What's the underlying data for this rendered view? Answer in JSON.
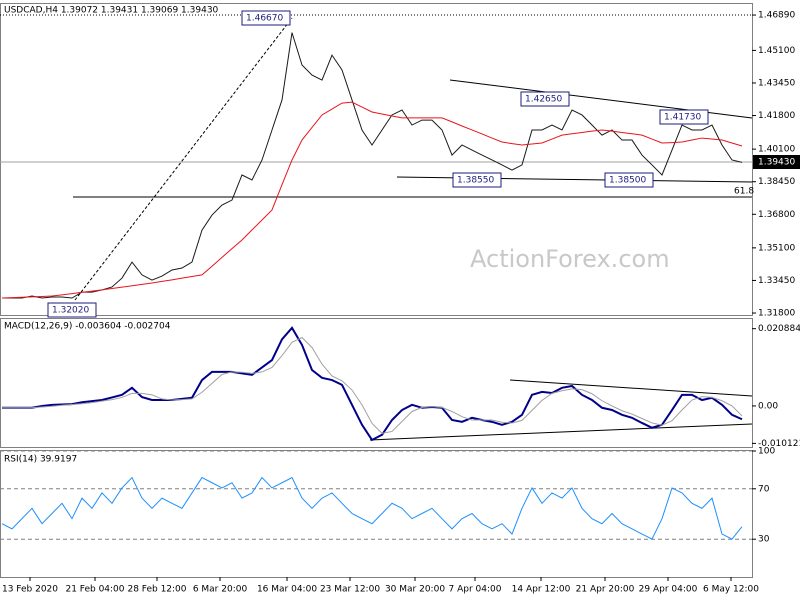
{
  "chart_data": [
    {
      "type": "line",
      "title": "USDCAD,H4  1.39072 1.39431 1.39069 1.39430",
      "watermark": "ActionForex.com",
      "last_price_label": "1.39430",
      "annotations": [
        "1.46670",
        "1.32020",
        "1.42650",
        "1.41730",
        "1.38550",
        "1.38500",
        "61.8"
      ],
      "ylim": [
        1.317,
        1.475
      ],
      "yticks": [
        {
          "value": 1.4689,
          "label": "1.46890"
        },
        {
          "value": 1.451,
          "label": "1.45100"
        },
        {
          "value": 1.4345,
          "label": "1.43450"
        },
        {
          "value": 1.418,
          "label": "1.41800"
        },
        {
          "value": 1.401,
          "label": "1.40100"
        },
        {
          "value": 1.3845,
          "label": "1.38450"
        },
        {
          "value": 1.368,
          "label": "1.36800"
        },
        {
          "value": 1.351,
          "label": "1.35100"
        },
        {
          "value": 1.3345,
          "label": "1.33450"
        },
        {
          "value": 1.318,
          "label": "1.31800"
        }
      ],
      "series": [
        {
          "color": "#1a1a1a",
          "values": [
            1.3256,
            1.3256,
            1.3256,
            1.3266,
            1.3256,
            1.3261,
            1.3261,
            1.3256,
            1.3286,
            1.3286,
            1.3297,
            1.3312,
            1.3357,
            1.3438,
            1.3373,
            1.3347,
            1.3367,
            1.3398,
            1.3408,
            1.3438,
            1.36,
            1.3676,
            1.3727,
            1.3752,
            1.3879,
            1.3854,
            1.3955,
            1.4107,
            1.4259,
            1.46,
            1.4436,
            1.4385,
            1.436,
            1.4486,
            1.4411,
            1.4259,
            1.4107,
            1.4031,
            1.4107,
            1.4183,
            1.4208,
            1.4132,
            1.4157,
            1.4157,
            1.4107,
            1.398,
            1.4031,
            1.4005,
            1.398,
            1.3955,
            1.393,
            1.3904,
            1.393,
            1.4107,
            1.4107,
            1.4132,
            1.4107,
            1.4208,
            1.4183,
            1.4132,
            1.4081,
            1.4107,
            1.4056,
            1.4056,
            1.398,
            1.393,
            1.3879,
            1.4005,
            1.4132,
            1.4107,
            1.4107,
            1.4132,
            1.4031,
            1.3955,
            1.3943
          ]
        },
        {
          "color": "#e8141e",
          "values": [
            1.3256,
            1.3258,
            1.326,
            1.3262,
            1.3264,
            1.3266,
            1.3272,
            1.3278,
            1.3285,
            1.3291,
            1.3297,
            1.3304,
            1.3311,
            1.3318,
            1.3325,
            1.3332,
            1.334,
            1.3348,
            1.3357,
            1.3365,
            1.3373,
            1.3417,
            1.3462,
            1.3506,
            1.355,
            1.3601,
            1.3651,
            1.3702,
            1.383,
            1.3955,
            1.4056,
            1.412,
            1.4183,
            1.4213,
            1.4243,
            1.4248,
            1.4223,
            1.4198,
            1.4188,
            1.4178,
            1.4168,
            1.4168,
            1.4168,
            1.4168,
            1.4168,
            1.4148,
            1.4127,
            1.4107,
            1.4087,
            1.4066,
            1.4046,
            1.4038,
            1.4031,
            1.4036,
            1.4041,
            1.4061,
            1.4081,
            1.4088,
            1.4094,
            1.4101,
            1.4107,
            1.4101,
            1.4094,
            1.4088,
            1.4081,
            1.4061,
            1.4041,
            1.4043,
            1.4046,
            1.4056,
            1.4066,
            1.4061,
            1.4056,
            1.4041,
            1.4026
          ]
        }
      ]
    },
    {
      "type": "line",
      "title": "MACD(12,26,9) -0.003604 -0.002704",
      "ylim": [
        -0.0111,
        0.0235
      ],
      "yticks": [
        0.020884,
        {
          "value": 0,
          "label": "0.00"
        },
        -0.010121
      ],
      "series": [
        {
          "color": "#00008b",
          "values": [
            -0.0005,
            -0.0005,
            -0.0005,
            -0.0005,
            0.0,
            0.0003,
            0.0004,
            0.0005,
            0.001,
            0.0013,
            0.0016,
            0.0023,
            0.003,
            0.0049,
            0.0024,
            0.0016,
            0.0016,
            0.0016,
            0.0019,
            0.0022,
            0.007,
            0.0092,
            0.0092,
            0.0092,
            0.0088,
            0.0084,
            0.0104,
            0.0124,
            0.018,
            0.0211,
            0.0165,
            0.0097,
            0.0076,
            0.007,
            0.0057,
            0.0003,
            -0.0051,
            -0.0092,
            -0.0078,
            -0.0038,
            -0.0011,
            0.0003,
            -0.0005,
            -0.0003,
            -0.0005,
            -0.0038,
            -0.0043,
            -0.0032,
            -0.0038,
            -0.0043,
            -0.0051,
            -0.0043,
            -0.0024,
            0.003,
            0.0038,
            0.0035,
            0.0049,
            0.0054,
            0.003,
            0.0016,
            -0.0005,
            -0.0011,
            -0.0024,
            -0.0032,
            -0.0046,
            -0.0059,
            -0.0051,
            -0.0011,
            0.003,
            0.003,
            0.0016,
            0.0022,
            0.0003,
            -0.0024,
            -0.0036
          ]
        },
        {
          "color": "#a0a0a0",
          "values": [
            -0.0005,
            -0.0005,
            -0.0005,
            -0.0005,
            -0.0003,
            -0.0001,
            0.0002,
            0.0004,
            0.0006,
            0.0009,
            0.0013,
            0.0017,
            0.0023,
            0.0034,
            0.0034,
            0.003,
            0.0019,
            0.0016,
            0.0017,
            0.0019,
            0.0037,
            0.0061,
            0.0085,
            0.0092,
            0.0091,
            0.0088,
            0.0092,
            0.0104,
            0.0136,
            0.0172,
            0.0185,
            0.0158,
            0.0113,
            0.0081,
            0.0068,
            0.0043,
            0.0003,
            -0.0047,
            -0.0074,
            -0.0069,
            -0.0042,
            -0.0015,
            -0.0004,
            -0.0002,
            -0.0004,
            -0.0015,
            -0.0029,
            -0.0038,
            -0.0038,
            -0.0038,
            -0.0044,
            -0.0046,
            -0.0039,
            -0.0012,
            0.0015,
            0.0034,
            0.0041,
            0.0046,
            0.0044,
            0.0033,
            0.0014,
            0.0,
            -0.0013,
            -0.0022,
            -0.0034,
            -0.0046,
            -0.0052,
            -0.004,
            -0.0011,
            0.0016,
            0.0025,
            0.0023,
            0.0014,
            0.0,
            -0.0027
          ]
        }
      ]
    },
    {
      "type": "line",
      "title": "RSI(14) 39.9197",
      "ylim": [
        0,
        100
      ],
      "yticks": [
        100,
        70,
        30
      ],
      "xlim": [
        0,
        74
      ],
      "xticks": [
        {
          "value": 2.8,
          "label": "13 Feb 2020"
        },
        {
          "value": 9.3,
          "label": "21 Feb 04:00"
        },
        {
          "value": 15.5,
          "label": "28 Feb 12:00"
        },
        {
          "value": 21.8,
          "label": "6 Mar 20:00"
        },
        {
          "value": 28.5,
          "label": "16 Mar 04:00"
        },
        {
          "value": 34.8,
          "label": "23 Mar 12:00"
        },
        {
          "value": 41.3,
          "label": "30 Mar 20:00"
        },
        {
          "value": 47.3,
          "label": "7 Apr 04:00"
        },
        {
          "value": 53.9,
          "label": "14 Apr 12:00"
        },
        {
          "value": 60.3,
          "label": "21 Apr 20:00"
        },
        {
          "value": 66.6,
          "label": "29 Apr 04:00"
        },
        {
          "value": 72.9,
          "label": "6 May 12:00"
        }
      ],
      "series": [
        {
          "color": "#1e90ff",
          "values": [
            42.3,
            38.2,
            46.3,
            54.5,
            42.3,
            50.4,
            58.5,
            46.3,
            62.6,
            54.5,
            66.7,
            58.5,
            70.7,
            78.9,
            62.6,
            54.5,
            62.6,
            58.5,
            54.5,
            66.7,
            78.9,
            74.8,
            70.7,
            74.8,
            62.6,
            66.7,
            78.9,
            70.7,
            74.8,
            78.9,
            62.6,
            54.5,
            62.6,
            66.7,
            58.5,
            50.4,
            46.3,
            42.3,
            50.4,
            58.5,
            54.5,
            46.3,
            50.4,
            54.5,
            46.3,
            38.2,
            46.3,
            50.4,
            42.3,
            38.2,
            42.3,
            34.1,
            54.5,
            70.7,
            58.5,
            66.7,
            62.6,
            70.7,
            54.5,
            46.3,
            42.3,
            50.4,
            42.3,
            38.2,
            34.1,
            30.1,
            46.3,
            70.7,
            66.7,
            58.5,
            54.5,
            62.6,
            34.1,
            30.1,
            39.9
          ]
        }
      ]
    }
  ]
}
